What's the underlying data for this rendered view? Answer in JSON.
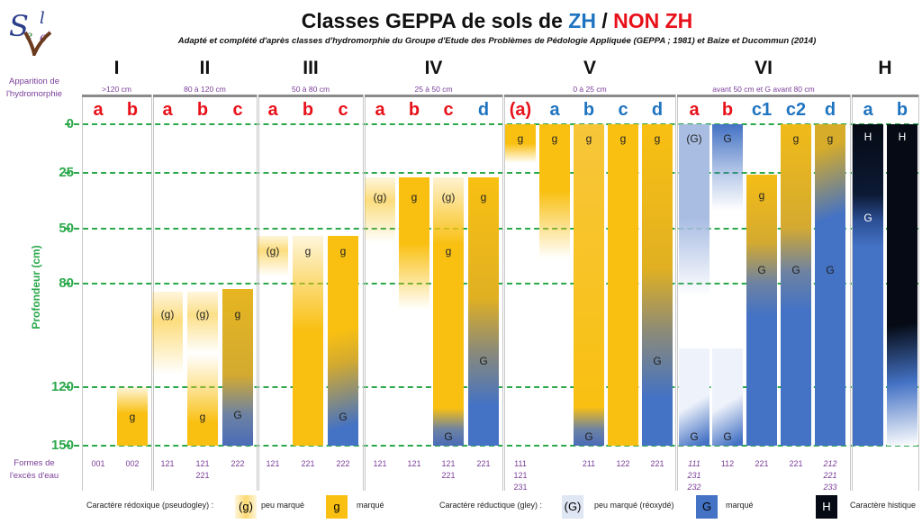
{
  "title": {
    "main": "Classes GEPPA de sols de ",
    "zh": "ZH",
    "sep": " / ",
    "nonzh": "NON ZH"
  },
  "subtitle": "Adapté et complété d'après classes d'hydromorphie du Groupe d'Etude des Problèmes de Pédologie Appliquée (GEPPA ; 1981) et Baize et Ducommun (2014)",
  "logo_text": "Sol e Vie",
  "side_labels": {
    "apparition": [
      "Apparition de",
      "l'hydromorphie"
    ],
    "formes": [
      "Formes de",
      "l'excès d'eau"
    ]
  },
  "y_axis": {
    "label": "Profondeur (cm)",
    "ticks": [
      "0",
      "25",
      "50",
      "80",
      "120",
      "150"
    ],
    "values": [
      0,
      25,
      50,
      80,
      120,
      150
    ]
  },
  "colors": {
    "zh": "#1f74c0",
    "nonzh": "#e8111a",
    "grid": "#2aa84a",
    "redox": "#f9c012",
    "gley": "#4472c4",
    "histic": "#050a14",
    "purple": "#7a3d99"
  },
  "groups": [
    {
      "roman": "I",
      "range": ">120 cm",
      "columns": [
        {
          "letter": "a",
          "zone": "nonzh",
          "codes": [
            "001"
          ],
          "segments": [],
          "labels": []
        },
        {
          "letter": "b",
          "zone": "nonzh",
          "codes": [
            "002"
          ],
          "segments": [
            {
              "from": 120,
              "to": 150,
              "fill": "gold-fade-top"
            }
          ],
          "labels": [
            {
              "text": "g",
              "depth": 133
            }
          ]
        }
      ]
    },
    {
      "roman": "II",
      "range": "80 à 120 cm",
      "columns": [
        {
          "letter": "a",
          "zone": "nonzh",
          "codes": [
            "121"
          ],
          "segments": [
            {
              "from": 83,
              "to": 115,
              "fill": "weak-gold"
            }
          ],
          "labels": [
            {
              "text": "(g)",
              "depth": 90
            }
          ]
        },
        {
          "letter": "b",
          "zone": "nonzh",
          "codes": [
            "121",
            "221"
          ],
          "segments": [
            {
              "from": 83,
              "to": 150,
              "fill": "weak-to-gold"
            }
          ],
          "labels": [
            {
              "text": "(g)",
              "depth": 90
            },
            {
              "text": "g",
              "depth": 133
            }
          ]
        },
        {
          "letter": "c",
          "zone": "nonzh",
          "codes": [
            "222"
          ],
          "segments": [
            {
              "from": 82,
              "to": 150,
              "fill": "gold-to-blue-late"
            }
          ],
          "labels": [
            {
              "text": "g",
              "depth": 90
            },
            {
              "text": "G",
              "depth": 132
            }
          ]
        }
      ]
    },
    {
      "roman": "III",
      "range": "50 à 80 cm",
      "columns": [
        {
          "letter": "a",
          "zone": "nonzh",
          "codes": [
            "121"
          ],
          "segments": [
            {
              "from": 54,
              "to": 76,
              "fill": "weak-gold"
            }
          ],
          "labels": [
            {
              "text": "(g)",
              "depth": 60
            }
          ]
        },
        {
          "letter": "b",
          "zone": "nonzh",
          "codes": [
            "221"
          ],
          "segments": [
            {
              "from": 54,
              "to": 150,
              "fill": "gold-fade-top"
            }
          ],
          "labels": [
            {
              "text": "g",
              "depth": 60
            }
          ]
        },
        {
          "letter": "c",
          "zone": "nonzh",
          "codes": [
            "222"
          ],
          "segments": [
            {
              "from": 54,
              "to": 150,
              "fill": "gold-diag-blue"
            }
          ],
          "labels": [
            {
              "text": "g",
              "depth": 60
            },
            {
              "text": "G",
              "depth": 133
            }
          ]
        }
      ]
    },
    {
      "roman": "IV",
      "range": "25 à 50 cm",
      "columns": [
        {
          "letter": "a",
          "zone": "nonzh",
          "codes": [
            "121"
          ],
          "segments": [
            {
              "from": 27,
              "to": 58,
              "fill": "weak-gold"
            }
          ],
          "labels": [
            {
              "text": "(g)",
              "depth": 34
            }
          ]
        },
        {
          "letter": "b",
          "zone": "nonzh",
          "codes": [
            "121"
          ],
          "segments": [
            {
              "from": 27,
              "to": 90,
              "fill": "gold-fade-bottom"
            }
          ],
          "labels": [
            {
              "text": "g",
              "depth": 34
            }
          ]
        },
        {
          "letter": "c",
          "zone": "nonzh",
          "codes": [
            "121",
            "221"
          ],
          "segments": [
            {
              "from": 27,
              "to": 150,
              "fill": "gold-blue-bottom-weaktop"
            }
          ],
          "labels": [
            {
              "text": "(g)",
              "depth": 34
            },
            {
              "text": "g",
              "depth": 60
            },
            {
              "text": "G",
              "depth": 143
            }
          ]
        },
        {
          "letter": "d",
          "zone": "zh",
          "codes": [
            "221"
          ],
          "segments": [
            {
              "from": 27,
              "to": 150,
              "fill": "gold-to-blue-mid"
            }
          ],
          "labels": [
            {
              "text": "g",
              "depth": 34
            },
            {
              "text": "G",
              "depth": 108
            }
          ]
        }
      ]
    },
    {
      "roman": "V",
      "range": "0 à 25 cm",
      "columns": [
        {
          "letter": "(a)",
          "zone": "nonzh",
          "codes": [
            "111",
            "121",
            "231"
          ],
          "segments": [
            {
              "from": 0,
              "to": 20,
              "fill": "gold-fade-bottom"
            }
          ],
          "labels": [
            {
              "text": "g",
              "depth": 5
            }
          ]
        },
        {
          "letter": "a",
          "zone": "zh",
          "codes": [],
          "segments": [
            {
              "from": 0,
              "to": 66,
              "fill": "gold-fade-bottom"
            }
          ],
          "labels": [
            {
              "text": "g",
              "depth": 5
            }
          ]
        },
        {
          "letter": "b",
          "zone": "zh",
          "codes": [
            "211"
          ],
          "segments": [
            {
              "from": 0,
              "to": 150,
              "fill": "gold-blue-bottom"
            }
          ],
          "labels": [
            {
              "text": "g",
              "depth": 5
            },
            {
              "text": "G",
              "depth": 143
            }
          ]
        },
        {
          "letter": "c",
          "zone": "zh",
          "codes": [
            "122"
          ],
          "segments": [
            {
              "from": 0,
              "to": 150,
              "fill": "gold"
            }
          ],
          "labels": [
            {
              "text": "g",
              "depth": 5
            }
          ]
        },
        {
          "letter": "d",
          "zone": "zh",
          "codes": [
            "221"
          ],
          "segments": [
            {
              "from": 0,
              "to": 150,
              "fill": "gold-to-blue-mid"
            }
          ],
          "labels": [
            {
              "text": "g",
              "depth": 5
            },
            {
              "text": "G",
              "depth": 108
            }
          ]
        }
      ]
    },
    {
      "roman": "VI",
      "range": "avant 50 cm et G avant 80 cm",
      "columns": [
        {
          "letter": "a",
          "zone": "nonzh",
          "codes": [
            "111",
            "231",
            "232"
          ],
          "italic": true,
          "segments": [
            {
              "from": 0,
              "to": 85,
              "fill": "gley-weak-fade"
            },
            {
              "from": 105,
              "to": 150,
              "fill": "gley-weak-diag"
            }
          ],
          "labels": [
            {
              "text": "(G)",
              "depth": 5
            },
            {
              "text": "G",
              "depth": 143
            }
          ]
        },
        {
          "letter": "b",
          "zone": "nonzh",
          "codes": [
            "112"
          ],
          "segments": [
            {
              "from": 0,
              "to": 42,
              "fill": "gley-fade"
            },
            {
              "from": 105,
              "to": 150,
              "fill": "gley-weak-diag"
            }
          ],
          "labels": [
            {
              "text": "G",
              "depth": 5
            },
            {
              "text": "G",
              "depth": 143
            }
          ]
        },
        {
          "letter": "c1",
          "zone": "zh",
          "codes": [
            "221"
          ],
          "segments": [
            {
              "from": 26,
              "to": 150,
              "fill": "gold-blue-c1"
            }
          ],
          "labels": [
            {
              "text": "g",
              "depth": 33
            },
            {
              "text": "G",
              "depth": 70
            }
          ]
        },
        {
          "letter": "c2",
          "zone": "zh",
          "codes": [
            "221"
          ],
          "segments": [
            {
              "from": 0,
              "to": 150,
              "fill": "gold-blue-c2"
            }
          ],
          "labels": [
            {
              "text": "g",
              "depth": 5
            },
            {
              "text": "G",
              "depth": 70
            }
          ]
        },
        {
          "letter": "d",
          "zone": "zh",
          "codes": [
            "212",
            "221",
            "233"
          ],
          "italic": true,
          "segments": [
            {
              "from": 0,
              "to": 150,
              "fill": "gold-diag-blue-early"
            }
          ],
          "labels": [
            {
              "text": "g",
              "depth": 5
            },
            {
              "text": "G",
              "depth": 70
            }
          ]
        }
      ]
    },
    {
      "roman": "H",
      "range": "",
      "columns": [
        {
          "letter": "a",
          "zone": "zh",
          "codes": [],
          "segments": [
            {
              "from": 0,
              "to": 150,
              "fill": "histic-a"
            }
          ],
          "labels": [
            {
              "text": "H",
              "depth": 4,
              "white": true
            },
            {
              "text": "G",
              "depth": 43,
              "white": true
            }
          ]
        },
        {
          "letter": "b",
          "zone": "zh",
          "codes": [],
          "segments": [
            {
              "from": 0,
              "to": 150,
              "fill": "histic-b"
            }
          ],
          "labels": [
            {
              "text": "H",
              "depth": 4,
              "white": true
            }
          ]
        }
      ]
    }
  ],
  "legend": {
    "redox_title": "Caractère rédoxique (pseudogley) :",
    "redox_weak_symbol": "(g)",
    "redox_weak_label": "peu marqué",
    "redox_symbol": "g",
    "redox_label": "marqué",
    "gley_title": "Caractère réductique (gley) :",
    "gley_weak_symbol": "(G)",
    "gley_weak_label": "peu marqué (réoxydé)",
    "gley_symbol": "G",
    "gley_label": "marqué",
    "histic_symbol": "H",
    "histic_label": "Caractère histique"
  }
}
